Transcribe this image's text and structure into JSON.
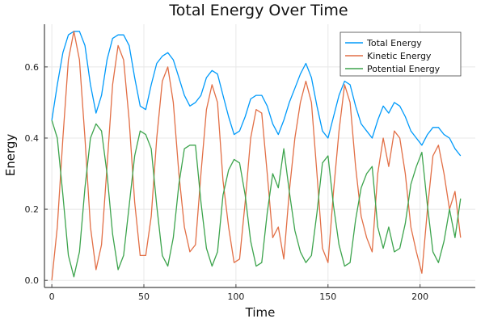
{
  "chart_data": {
    "type": "line",
    "title": "Total Energy Over Time",
    "xlabel": "Time",
    "ylabel": "Energy",
    "xlim": [
      -4,
      230
    ],
    "ylim": [
      -0.02,
      0.72
    ],
    "xticks": [
      0,
      50,
      100,
      150,
      200
    ],
    "xtick_labels": [
      "0",
      "50",
      "100",
      "150",
      "200"
    ],
    "yticks": [
      0,
      0.2,
      0.4,
      0.6
    ],
    "ytick_labels": [
      "0.0",
      "0.2",
      "0.4",
      "0.6"
    ],
    "grid": true,
    "legend_position": "top-right",
    "x": [
      0,
      3,
      6,
      9,
      12,
      15,
      18,
      21,
      24,
      27,
      30,
      33,
      36,
      39,
      42,
      45,
      48,
      51,
      54,
      57,
      60,
      63,
      66,
      69,
      72,
      75,
      78,
      81,
      84,
      87,
      90,
      93,
      96,
      99,
      102,
      105,
      108,
      111,
      114,
      117,
      120,
      123,
      126,
      129,
      132,
      135,
      138,
      141,
      144,
      147,
      150,
      153,
      156,
      159,
      162,
      165,
      168,
      171,
      174,
      177,
      180,
      183,
      186,
      189,
      192,
      195,
      198,
      201,
      204,
      207,
      210,
      213,
      216,
      219,
      222
    ],
    "series": [
      {
        "name": "Total Energy",
        "color": "#009AFA",
        "values": [
          0.45,
          0.55,
          0.64,
          0.69,
          0.7,
          0.7,
          0.66,
          0.55,
          0.47,
          0.52,
          0.62,
          0.68,
          0.69,
          0.69,
          0.66,
          0.57,
          0.49,
          0.48,
          0.55,
          0.61,
          0.63,
          0.64,
          0.62,
          0.57,
          0.52,
          0.49,
          0.5,
          0.52,
          0.57,
          0.59,
          0.58,
          0.52,
          0.46,
          0.41,
          0.42,
          0.46,
          0.51,
          0.52,
          0.52,
          0.49,
          0.44,
          0.41,
          0.45,
          0.5,
          0.54,
          0.58,
          0.61,
          0.57,
          0.49,
          0.42,
          0.4,
          0.46,
          0.52,
          0.56,
          0.55,
          0.49,
          0.44,
          0.42,
          0.4,
          0.45,
          0.49,
          0.47,
          0.5,
          0.49,
          0.46,
          0.42,
          0.4,
          0.38,
          0.41,
          0.43,
          0.43,
          0.41,
          0.4,
          0.37,
          0.35
        ]
      },
      {
        "name": "Kinetic Energy",
        "color": "#E26F46",
        "values": [
          0,
          0.15,
          0.4,
          0.62,
          0.7,
          0.62,
          0.4,
          0.15,
          0.03,
          0.1,
          0.32,
          0.55,
          0.66,
          0.62,
          0.45,
          0.22,
          0.07,
          0.07,
          0.18,
          0.4,
          0.56,
          0.6,
          0.5,
          0.3,
          0.15,
          0.08,
          0.1,
          0.3,
          0.48,
          0.55,
          0.5,
          0.28,
          0.15,
          0.05,
          0.06,
          0.22,
          0.4,
          0.48,
          0.47,
          0.3,
          0.12,
          0.15,
          0.06,
          0.25,
          0.4,
          0.5,
          0.56,
          0.5,
          0.3,
          0.09,
          0.05,
          0.25,
          0.42,
          0.55,
          0.5,
          0.32,
          0.18,
          0.12,
          0.08,
          0.3,
          0.4,
          0.32,
          0.42,
          0.4,
          0.3,
          0.15,
          0.08,
          0.02,
          0.2,
          0.35,
          0.38,
          0.3,
          0.2,
          0.25,
          0.12
        ]
      },
      {
        "name": "Potential Energy",
        "color": "#3DA44D",
        "values": [
          0.45,
          0.4,
          0.24,
          0.07,
          0.01,
          0.08,
          0.26,
          0.4,
          0.44,
          0.42,
          0.3,
          0.13,
          0.03,
          0.07,
          0.21,
          0.35,
          0.42,
          0.41,
          0.37,
          0.21,
          0.07,
          0.04,
          0.12,
          0.27,
          0.37,
          0.38,
          0.38,
          0.22,
          0.09,
          0.04,
          0.08,
          0.24,
          0.31,
          0.34,
          0.33,
          0.24,
          0.11,
          0.04,
          0.05,
          0.19,
          0.3,
          0.26,
          0.37,
          0.25,
          0.14,
          0.08,
          0.05,
          0.07,
          0.19,
          0.33,
          0.35,
          0.21,
          0.1,
          0.04,
          0.05,
          0.17,
          0.26,
          0.3,
          0.32,
          0.15,
          0.09,
          0.15,
          0.08,
          0.09,
          0.16,
          0.27,
          0.32,
          0.36,
          0.21,
          0.08,
          0.05,
          0.11,
          0.2,
          0.12,
          0.23
        ]
      }
    ]
  }
}
